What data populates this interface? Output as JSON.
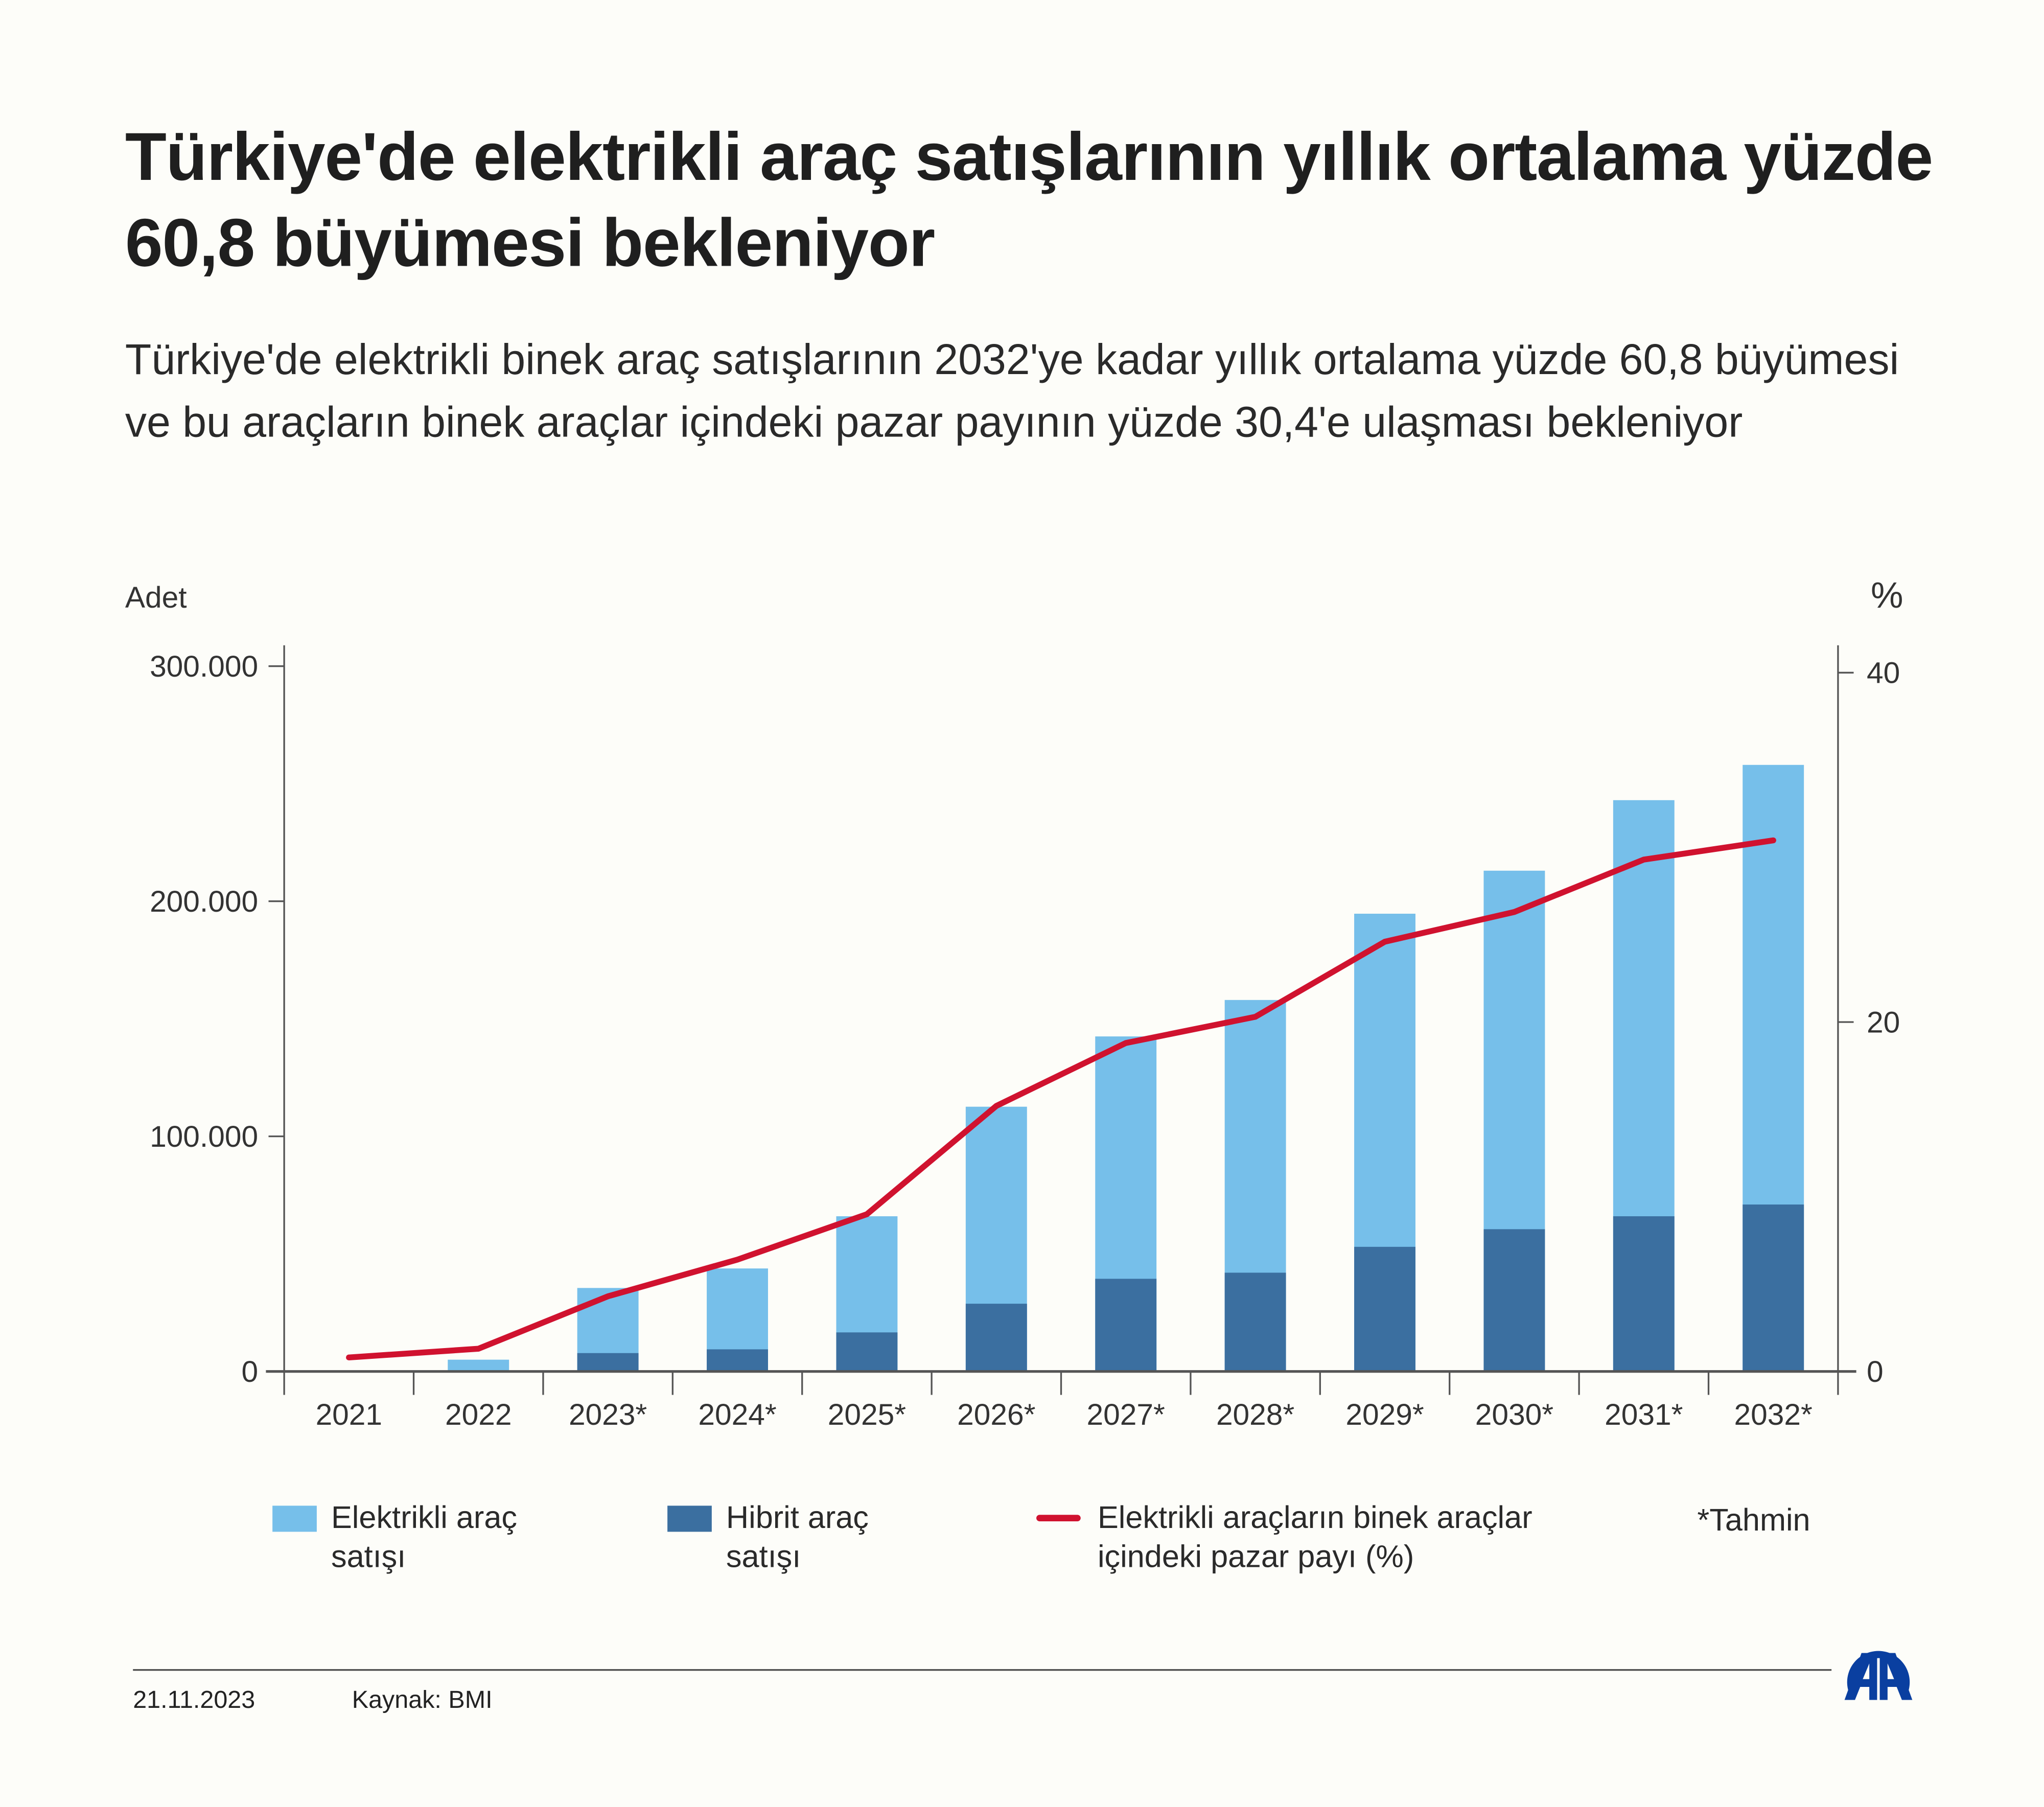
{
  "title": "Türkiye'de elektrikli araç satışlarının yıllık ortalama yüzde 60,8 büyümesi bekleniyor",
  "subtitle": "Türkiye'de elektrikli binek araç satışlarının 2032'ye kadar yıllık ortalama yüzde 60,8 büyümesi ve bu araçların binek araçlar içindeki pazar payının yüzde 30,4'e ulaşması bekleniyor",
  "chart_data": {
    "type": "bar",
    "categories": [
      "2021",
      "2022",
      "2023*",
      "2024*",
      "2025*",
      "2026*",
      "2027*",
      "2028*",
      "2029*",
      "2030*",
      "2031*",
      "2032*"
    ],
    "left_axis": {
      "label": "Adet",
      "ylim": [
        0,
        300000
      ],
      "ticks": [
        "0",
        "100.000",
        "200.000",
        "300.000"
      ],
      "tick_values": [
        0,
        100000,
        200000,
        300000
      ]
    },
    "right_axis": {
      "label": "%",
      "ylim": [
        0,
        40
      ],
      "ticks": [
        "0",
        "20",
        "40"
      ],
      "tick_values": [
        0,
        20,
        40
      ]
    },
    "series": [
      {
        "name": "Elektrikli araç satışı",
        "type": "bar",
        "color": "#76bfea",
        "values": [
          0,
          5000,
          35500,
          43800,
          66000,
          112600,
          142500,
          158000,
          194700,
          213000,
          243000,
          258000
        ]
      },
      {
        "name": "Hibrit araç satışı",
        "type": "bar",
        "color": "#3b6fa0",
        "values": [
          0,
          0,
          7800,
          9400,
          16600,
          28800,
          39400,
          42000,
          53000,
          60500,
          66000,
          71000
        ]
      },
      {
        "name": "Elektrikli araçların binek araçlar içindeki pazar payı (%)",
        "type": "line",
        "axis": "right",
        "color": "#d0122f",
        "values": [
          0.8,
          1.3,
          4.3,
          6.4,
          9.0,
          15.2,
          18.8,
          20.3,
          24.6,
          26.3,
          29.3,
          30.4
        ]
      }
    ],
    "grid": false,
    "legend_placement": "bottom",
    "note": "*Tahmin"
  },
  "legend": {
    "electric_l1": "Elektrikli araç",
    "electric_l2": "satışı",
    "hybrid_l1": "Hibrit araç",
    "hybrid_l2": "satışı",
    "share_l1": "Elektrikli araçların binek araçlar",
    "share_l2": "içindeki pazar payı (%)"
  },
  "footer": {
    "date": "21.11.2023",
    "source": "Kaynak: BMI",
    "logo": "AA"
  }
}
